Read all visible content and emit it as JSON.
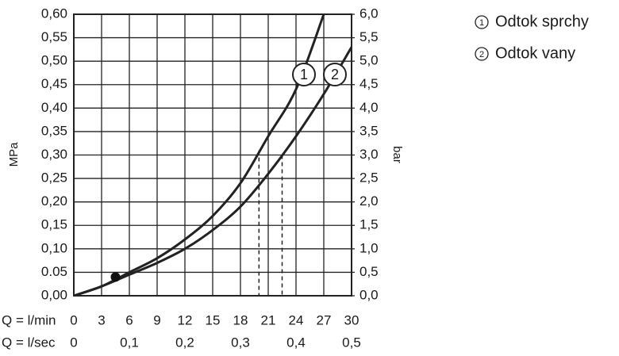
{
  "chart_data": {
    "type": "line",
    "y_label": "MPa",
    "y2_label": "bar",
    "x_label": "Q = l/min",
    "x2_label": "Q = l/sec",
    "xlim": [
      0,
      30
    ],
    "xticks": [
      0,
      3,
      6,
      9,
      12,
      15,
      18,
      21,
      24,
      27,
      30
    ],
    "x2lim": [
      0,
      0.5
    ],
    "x2ticks": [
      {
        "value": 0,
        "label": "0"
      },
      {
        "value": 0.1,
        "label": "0,1"
      },
      {
        "value": 0.2,
        "label": "0,2"
      },
      {
        "value": 0.3,
        "label": "0,3"
      },
      {
        "value": 0.4,
        "label": "0,4"
      },
      {
        "value": 0.5,
        "label": "0,5"
      }
    ],
    "ylim": [
      0,
      0.6
    ],
    "yticks": [
      {
        "value": 0,
        "label": "0,00"
      },
      {
        "value": 0.05,
        "label": "0.05"
      },
      {
        "value": 0.1,
        "label": "0,10"
      },
      {
        "value": 0.15,
        "label": "0,15"
      },
      {
        "value": 0.2,
        "label": "0,20"
      },
      {
        "value": 0.25,
        "label": "0,25"
      },
      {
        "value": 0.3,
        "label": "0,30"
      },
      {
        "value": 0.35,
        "label": "0,35"
      },
      {
        "value": 0.4,
        "label": "0,40"
      },
      {
        "value": 0.45,
        "label": "0,45"
      },
      {
        "value": 0.5,
        "label": "0,50"
      },
      {
        "value": 0.55,
        "label": "0,55"
      },
      {
        "value": 0.6,
        "label": "0,60"
      }
    ],
    "y2lim": [
      0,
      6
    ],
    "y2ticks": [
      {
        "value": 0,
        "label": "0,0"
      },
      {
        "value": 0.5,
        "label": "0,5"
      },
      {
        "value": 1,
        "label": "1,0"
      },
      {
        "value": 1.5,
        "label": "1,5"
      },
      {
        "value": 2,
        "label": "2,0"
      },
      {
        "value": 2.5,
        "label": "2,5"
      },
      {
        "value": 3,
        "label": "3,0"
      },
      {
        "value": 3.5,
        "label": "3,5"
      },
      {
        "value": 4,
        "label": "4,0"
      },
      {
        "value": 4.5,
        "label": "4,5"
      },
      {
        "value": 5,
        "label": "5,0"
      },
      {
        "value": 5.5,
        "label": "5,5"
      },
      {
        "value": 6,
        "label": "6,0"
      }
    ],
    "grid": true,
    "series": [
      {
        "name": "Odtok sprchy",
        "label": "1",
        "color": "#222222",
        "x": [
          0,
          3,
          6,
          9,
          12,
          15,
          18,
          21,
          24,
          27
        ],
        "values": [
          0,
          0.02,
          0.05,
          0.08,
          0.12,
          0.17,
          0.24,
          0.34,
          0.44,
          0.6
        ]
      },
      {
        "name": "Odtok vany",
        "label": "2",
        "color": "#222222",
        "x": [
          0,
          3,
          6,
          9,
          12,
          15,
          18,
          21,
          24,
          27,
          30
        ],
        "values": [
          0,
          0.02,
          0.045,
          0.07,
          0.1,
          0.14,
          0.19,
          0.26,
          0.34,
          0.43,
          0.53
        ]
      }
    ],
    "point": {
      "x": 4.5,
      "y": 0.04
    },
    "guides": [
      {
        "x": 20,
        "y": 0.31
      },
      {
        "x": 22.5,
        "y": 0.3
      }
    ]
  }
}
